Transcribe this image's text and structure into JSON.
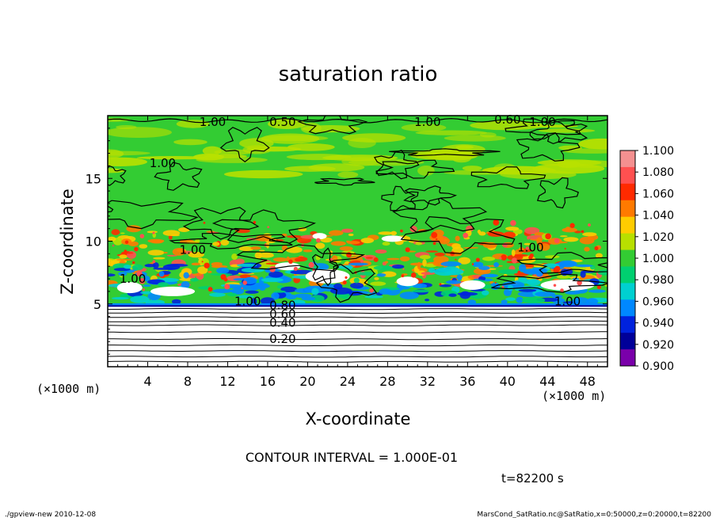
{
  "chart_data": {
    "type": "heatmap",
    "title": "saturation ratio",
    "xlabel": "X-coordinate",
    "ylabel": "Z-coordinate",
    "x_unit_left": "(×1000 m)",
    "x_unit_right": "(×1000 m)",
    "xlim": [
      0,
      50
    ],
    "ylim": [
      0,
      20
    ],
    "x_ticks": [
      4,
      8,
      12,
      16,
      20,
      24,
      28,
      32,
      36,
      40,
      44,
      48
    ],
    "y_ticks": [
      5,
      10,
      15
    ],
    "colorbar": {
      "ticks": [
        "1.100",
        "1.080",
        "1.060",
        "1.040",
        "1.020",
        "1.000",
        "0.980",
        "0.960",
        "0.940",
        "0.920",
        "0.900"
      ],
      "colors": [
        "#f49090",
        "#ff5050",
        "#ff2a00",
        "#ff7a00",
        "#ffcc00",
        "#b8e000",
        "#33cc33",
        "#00d070",
        "#00d0d0",
        "#0088ff",
        "#0022dd",
        "#000099",
        "#7a00aa"
      ]
    },
    "contour_labels": [
      {
        "text": "1.00",
        "x": 10.5,
        "z": 19.5
      },
      {
        "text": "0.50",
        "x": 17.5,
        "z": 19.5
      },
      {
        "text": "1.00",
        "x": 32,
        "z": 19.5
      },
      {
        "text": "0.60",
        "x": 40,
        "z": 19.7
      },
      {
        "text": "1.00",
        "x": 43.5,
        "z": 19.5
      },
      {
        "text": "1.00",
        "x": 5.5,
        "z": 16.2
      },
      {
        "text": "1.00",
        "x": 8.5,
        "z": 9.3
      },
      {
        "text": "1.00",
        "x": 42.3,
        "z": 9.5
      },
      {
        "text": "1.00",
        "x": 2.5,
        "z": 7.0
      },
      {
        "text": "1.00",
        "x": 14,
        "z": 5.2
      },
      {
        "text": "0.80",
        "x": 17.5,
        "z": 4.9
      },
      {
        "text": "0.60",
        "x": 17.5,
        "z": 4.2
      },
      {
        "text": "0.40",
        "x": 17.5,
        "z": 3.5
      },
      {
        "text": "0.20",
        "x": 17.5,
        "z": 2.2
      },
      {
        "text": "1.00",
        "x": 46,
        "z": 5.2
      }
    ],
    "contour_interval_text": "CONTOUR INTERVAL = 1.000E-01",
    "time_text": "t=82200 s"
  },
  "footer": {
    "left": "./gpview-new  2010-12-08",
    "right": "MarsCond_SatRatio.nc@SatRatio,x=0:50000,z=0:20000,t=82200"
  },
  "colors": {
    "field_green": "#33cc33",
    "axis": "#000000",
    "background": "#ffffff"
  }
}
